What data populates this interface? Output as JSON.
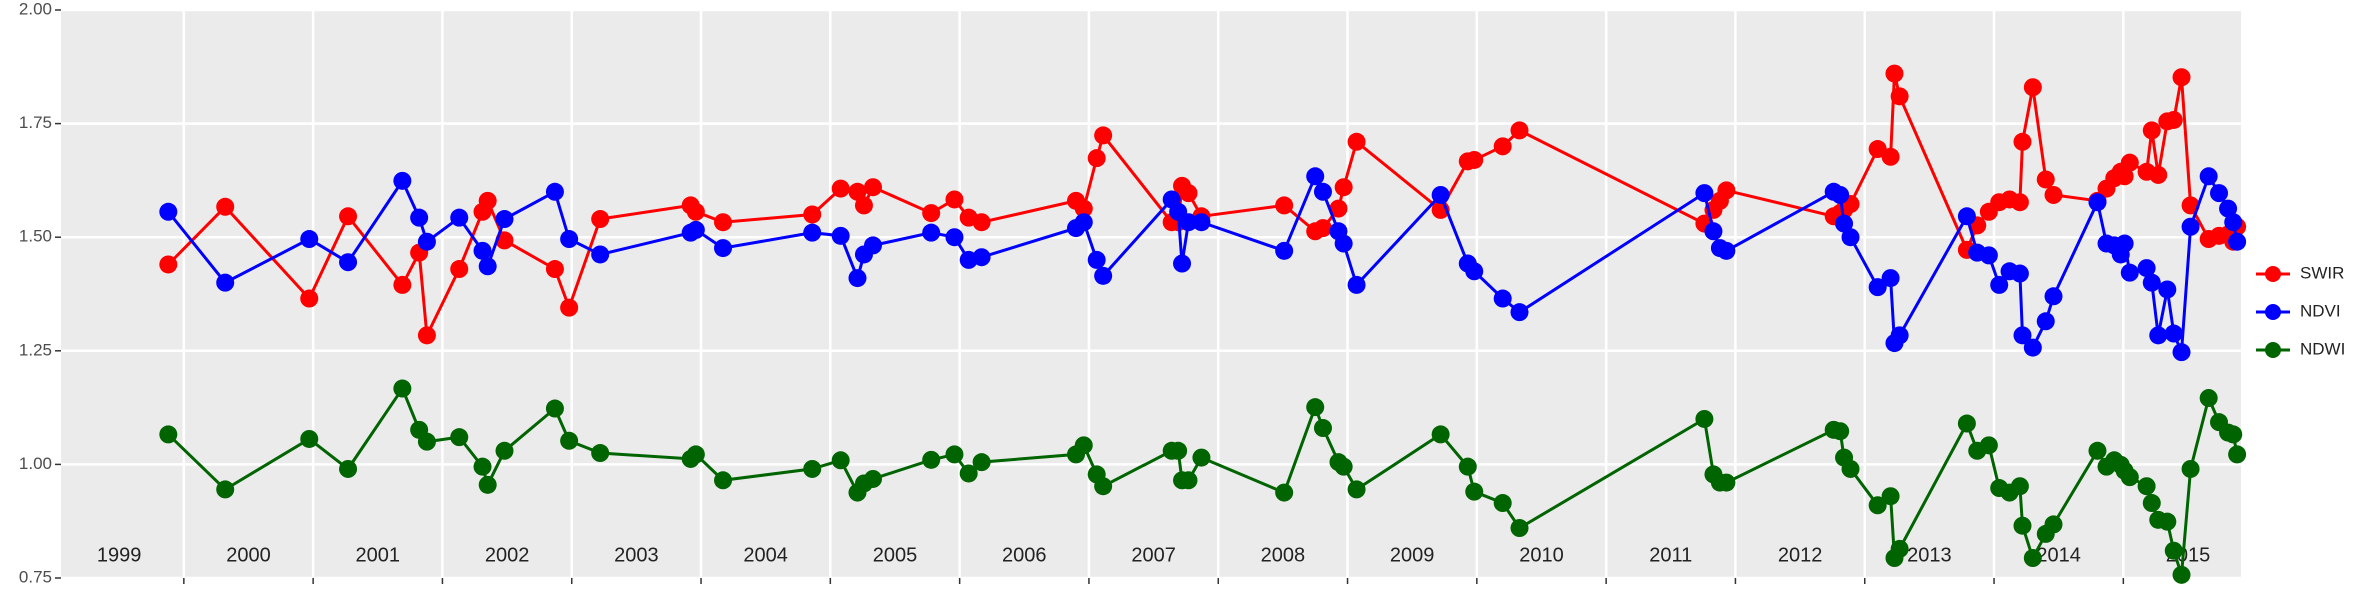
{
  "chart_data": {
    "type": "line",
    "x": [
      1999.88,
      2000.32,
      2000.97,
      2001.27,
      2001.69,
      2001.82,
      2001.88,
      2002.13,
      2002.31,
      2002.35,
      2002.48,
      2002.87,
      2002.98,
      2003.22,
      2003.92,
      2003.96,
      2004.17,
      2004.86,
      2005.08,
      2005.21,
      2005.26,
      2005.33,
      2005.78,
      2005.96,
      2006.07,
      2006.17,
      2006.9,
      2006.96,
      2007.06,
      2007.11,
      2007.64,
      2007.69,
      2007.72,
      2007.77,
      2007.87,
      2008.51,
      2008.75,
      2008.81,
      2008.93,
      2008.97,
      2009.07,
      2009.72,
      2009.93,
      2009.98,
      2010.2,
      2010.33,
      2011.76,
      2011.83,
      2011.88,
      2011.93,
      2012.76,
      2012.81,
      2012.84,
      2012.89,
      2013.1,
      2013.2,
      2013.23,
      2013.27,
      2013.79,
      2013.87,
      2013.96,
      2014.04,
      2014.12,
      2014.2,
      2014.22,
      2014.3,
      2014.4,
      2014.46,
      2014.8,
      2014.87,
      2014.93,
      2014.98,
      2015.01,
      2015.05,
      2015.18,
      2015.22,
      2015.27,
      2015.34,
      2015.39,
      2015.45,
      2015.52,
      2015.66,
      2015.74,
      2015.81,
      2015.85,
      2015.88
    ],
    "series": [
      {
        "name": "SWIR",
        "color": "#ff0000",
        "values": [
          1.44,
          1.567,
          1.365,
          1.546,
          1.395,
          1.466,
          1.284,
          1.43,
          1.556,
          1.58,
          1.493,
          1.43,
          1.345,
          1.54,
          1.57,
          1.556,
          1.533,
          1.55,
          1.607,
          1.6,
          1.57,
          1.61,
          1.553,
          1.583,
          1.543,
          1.533,
          1.58,
          1.563,
          1.674,
          1.724,
          1.533,
          1.533,
          1.613,
          1.597,
          1.546,
          1.57,
          1.513,
          1.52,
          1.563,
          1.61,
          1.71,
          1.56,
          1.667,
          1.67,
          1.7,
          1.735,
          1.53,
          1.56,
          1.58,
          1.603,
          1.546,
          1.553,
          1.56,
          1.573,
          1.694,
          1.677,
          1.86,
          1.81,
          1.472,
          1.526,
          1.556,
          1.577,
          1.583,
          1.577,
          1.71,
          1.83,
          1.627,
          1.593,
          1.58,
          1.607,
          1.63,
          1.644,
          1.634,
          1.664,
          1.644,
          1.735,
          1.637,
          1.755,
          1.758,
          1.852,
          1.57,
          1.496,
          1.503,
          1.506,
          1.49,
          1.523
        ]
      },
      {
        "name": "NDVI",
        "color": "#0000ff",
        "values": [
          1.556,
          1.4,
          1.496,
          1.445,
          1.624,
          1.543,
          1.49,
          1.543,
          1.47,
          1.436,
          1.54,
          1.6,
          1.496,
          1.462,
          1.51,
          1.516,
          1.476,
          1.51,
          1.503,
          1.41,
          1.462,
          1.482,
          1.51,
          1.5,
          1.45,
          1.456,
          1.52,
          1.533,
          1.45,
          1.415,
          1.583,
          1.556,
          1.442,
          1.533,
          1.533,
          1.47,
          1.634,
          1.6,
          1.513,
          1.486,
          1.395,
          1.593,
          1.442,
          1.425,
          1.365,
          1.335,
          1.597,
          1.513,
          1.476,
          1.47,
          1.6,
          1.593,
          1.53,
          1.5,
          1.39,
          1.41,
          1.267,
          1.284,
          1.546,
          1.466,
          1.46,
          1.395,
          1.425,
          1.42,
          1.284,
          1.257,
          1.315,
          1.37,
          1.577,
          1.486,
          1.482,
          1.462,
          1.486,
          1.422,
          1.432,
          1.4,
          1.284,
          1.385,
          1.288,
          1.247,
          1.523,
          1.634,
          1.597,
          1.563,
          1.533,
          1.49
        ]
      },
      {
        "name": "NDWI",
        "color": "#006400",
        "values": [
          1.066,
          0.945,
          1.056,
          0.99,
          1.167,
          1.076,
          1.05,
          1.06,
          0.995,
          0.955,
          1.03,
          1.123,
          1.052,
          1.025,
          1.012,
          1.022,
          0.965,
          0.99,
          1.009,
          0.938,
          0.958,
          0.968,
          1.01,
          1.022,
          0.98,
          1.005,
          1.022,
          1.042,
          0.978,
          0.952,
          1.03,
          1.03,
          0.965,
          0.965,
          1.015,
          0.938,
          1.126,
          1.08,
          1.005,
          0.995,
          0.945,
          1.066,
          0.995,
          0.94,
          0.915,
          0.86,
          1.1,
          0.978,
          0.96,
          0.96,
          1.076,
          1.073,
          1.015,
          0.99,
          0.91,
          0.93,
          0.794,
          0.814,
          1.09,
          1.03,
          1.042,
          0.948,
          0.938,
          0.952,
          0.865,
          0.794,
          0.847,
          0.868,
          1.03,
          0.995,
          1.009,
          0.999,
          0.986,
          0.972,
          0.952,
          0.915,
          0.878,
          0.874,
          0.81,
          0.757,
          0.99,
          1.146,
          1.093,
          1.07,
          1.066,
          1.022
        ]
      }
    ],
    "xlim": [
      1999.05,
      2015.91
    ],
    "xgrid": [
      2000,
      2001,
      2002,
      2003,
      2004,
      2005,
      2006,
      2007,
      2008,
      2009,
      2010,
      2011,
      2012,
      2013,
      2014,
      2015
    ],
    "xticks": [
      {
        "value": 1999.5,
        "label": "1999"
      },
      {
        "value": 2000.5,
        "label": "2000"
      },
      {
        "value": 2001.5,
        "label": "2001"
      },
      {
        "value": 2002.5,
        "label": "2002"
      },
      {
        "value": 2003.5,
        "label": "2003"
      },
      {
        "value": 2004.5,
        "label": "2004"
      },
      {
        "value": 2005.5,
        "label": "2005"
      },
      {
        "value": 2006.5,
        "label": "2006"
      },
      {
        "value": 2007.5,
        "label": "2007"
      },
      {
        "value": 2008.5,
        "label": "2008"
      },
      {
        "value": 2009.5,
        "label": "2009"
      },
      {
        "value": 2010.5,
        "label": "2010"
      },
      {
        "value": 2011.5,
        "label": "2011"
      },
      {
        "value": 2012.5,
        "label": "2012"
      },
      {
        "value": 2013.5,
        "label": "2013"
      },
      {
        "value": 2014.5,
        "label": "2014"
      },
      {
        "value": 2015.5,
        "label": "2015"
      }
    ],
    "ylim": [
      0.75,
      2.0
    ],
    "yticks": [
      0.75,
      {
        "value": 1,
        "label": "1.00"
      },
      1.25,
      {
        "value": 1.5,
        "label": "1.50"
      },
      1.75,
      {
        "value": 2,
        "label": "2.00"
      }
    ],
    "grid": true,
    "legend": "right"
  }
}
